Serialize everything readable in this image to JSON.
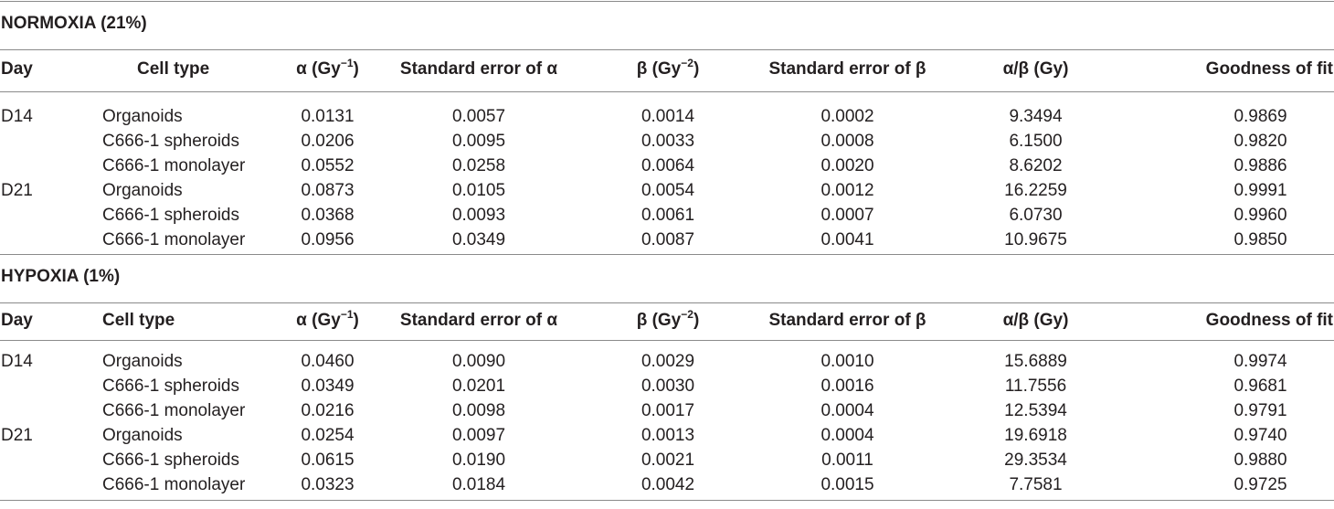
{
  "sections": [
    {
      "title": "NORMOXIA (21%)",
      "headers": {
        "day": "Day",
        "cell_type": "Cell type",
        "alpha_main": "α (Gy",
        "alpha_sup": "−1",
        "alpha_end": ")",
        "se_alpha": "Standard error of α",
        "beta_main": "β (Gy",
        "beta_sup": "−2",
        "beta_end": ")",
        "se_beta": "Standard error of β",
        "ratio": "α/β (Gy)",
        "fit": "Goodness of fit"
      },
      "rows": [
        [
          "D14",
          "Organoids",
          "0.0131",
          "0.0057",
          "0.0014",
          "0.0002",
          "9.3494",
          "0.9869"
        ],
        [
          "",
          "C666-1 spheroids",
          "0.0206",
          "0.0095",
          "0.0033",
          "0.0008",
          "6.1500",
          "0.9820"
        ],
        [
          "",
          "C666-1 monolayer",
          "0.0552",
          "0.0258",
          "0.0064",
          "0.0020",
          "8.6202",
          "0.9886"
        ],
        [
          "D21",
          "Organoids",
          "0.0873",
          "0.0105",
          "0.0054",
          "0.0012",
          "16.2259",
          "0.9991"
        ],
        [
          "",
          "C666-1 spheroids",
          "0.0368",
          "0.0093",
          "0.0061",
          "0.0007",
          "6.0730",
          "0.9960"
        ],
        [
          "",
          "C666-1 monolayer",
          "0.0956",
          "0.0349",
          "0.0087",
          "0.0041",
          "10.9675",
          "0.9850"
        ]
      ]
    },
    {
      "title": "HYPOXIA (1%)",
      "headers": {
        "day": "Day",
        "cell_type": "Cell type",
        "alpha_main": "α (Gy",
        "alpha_sup": "−1",
        "alpha_end": ")",
        "se_alpha": "Standard error of α",
        "beta_main": "β (Gy",
        "beta_sup": "−2",
        "beta_end": ")",
        "se_beta": "Standard error of β",
        "ratio": "α/β (Gy)",
        "fit": "Goodness of fit"
      },
      "rows": [
        [
          "D14",
          "Organoids",
          "0.0460",
          "0.0090",
          "0.0029",
          "0.0010",
          "15.6889",
          "0.9974"
        ],
        [
          "",
          "C666-1 spheroids",
          "0.0349",
          "0.0201",
          "0.0030",
          "0.0016",
          "11.7556",
          "0.9681"
        ],
        [
          "",
          "C666-1 monolayer",
          "0.0216",
          "0.0098",
          "0.0017",
          "0.0004",
          "12.5394",
          "0.9791"
        ],
        [
          "D21",
          "Organoids",
          "0.0254",
          "0.0097",
          "0.0013",
          "0.0004",
          "19.6918",
          "0.9740"
        ],
        [
          "",
          "C666-1 spheroids",
          "0.0615",
          "0.0190",
          "0.0021",
          "0.0011",
          "29.3534",
          "0.9880"
        ],
        [
          "",
          "C666-1 monolayer",
          "0.0323",
          "0.0184",
          "0.0042",
          "0.0015",
          "7.7581",
          "0.9725"
        ]
      ]
    }
  ]
}
